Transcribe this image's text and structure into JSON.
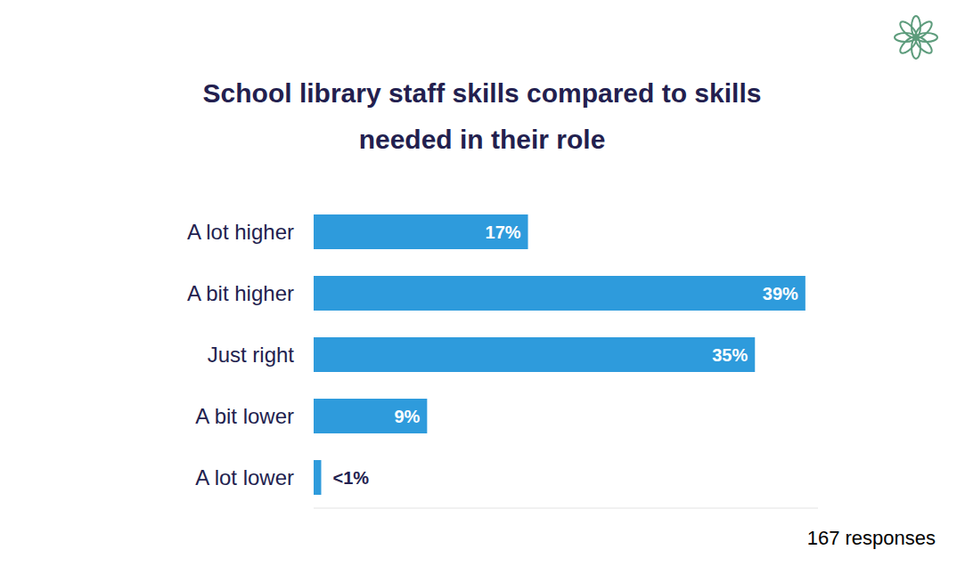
{
  "chart_data": {
    "type": "bar",
    "title": "School library staff skills compared to skills needed in their role",
    "orientation": "horizontal",
    "categories": [
      "A lot higher",
      "A bit higher",
      "Just right",
      "A bit lower",
      "A lot lower"
    ],
    "values": [
      17,
      39,
      35,
      9,
      0.6
    ],
    "value_labels": [
      "17%",
      "39%",
      "35%",
      "9%",
      "<1%"
    ],
    "data_labels": true,
    "color": "#2e9bdc",
    "xlim": [
      0,
      40
    ],
    "tick_labels": "y",
    "grid": false,
    "annotation": "167 responses"
  }
}
